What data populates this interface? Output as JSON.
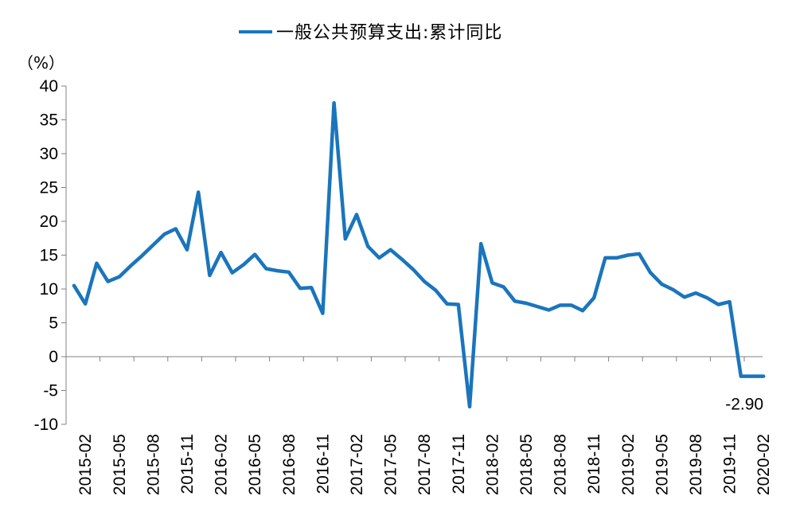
{
  "chart_data": {
    "type": "line",
    "ylabel": "（%）",
    "ylim": [
      -10,
      40
    ],
    "yticks": [
      -10,
      -5,
      0,
      5,
      10,
      15,
      20,
      25,
      30,
      35,
      40
    ],
    "xtick_labels": [
      "2015-02",
      "2015-05",
      "2015-08",
      "2015-11",
      "2016-02",
      "2016-05",
      "2016-08",
      "2016-11",
      "2017-02",
      "2017-05",
      "2017-08",
      "2017-11",
      "2018-02",
      "2018-05",
      "2018-08",
      "2018-11",
      "2019-02",
      "2019-05",
      "2019-08",
      "2019-11",
      "2020-02"
    ],
    "legend_position": "top-center",
    "grid": false,
    "color": "#1A75BC",
    "x": [
      "2015-01",
      "2015-02",
      "2015-03",
      "2015-04",
      "2015-05",
      "2015-06",
      "2015-07",
      "2015-08",
      "2015-09",
      "2015-10",
      "2015-11",
      "2015-12",
      "2016-01",
      "2016-02",
      "2016-03",
      "2016-04",
      "2016-05",
      "2016-06",
      "2016-07",
      "2016-08",
      "2016-09",
      "2016-10",
      "2016-11",
      "2016-12",
      "2017-01",
      "2017-02",
      "2017-03",
      "2017-04",
      "2017-05",
      "2017-06",
      "2017-07",
      "2017-08",
      "2017-09",
      "2017-10",
      "2017-11",
      "2017-12",
      "2018-01",
      "2018-02",
      "2018-03",
      "2018-04",
      "2018-05",
      "2018-06",
      "2018-07",
      "2018-08",
      "2018-09",
      "2018-10",
      "2018-11",
      "2018-12",
      "2019-01",
      "2019-02",
      "2019-03",
      "2019-04",
      "2019-05",
      "2019-06",
      "2019-07",
      "2019-08",
      "2019-09",
      "2019-10",
      "2019-11",
      "2019-12",
      "2020-01",
      "2020-02"
    ],
    "series": [
      {
        "name": "一般公共预算支出:累计同比",
        "values": [
          10.5,
          7.8,
          13.8,
          11.1,
          11.8,
          13.4,
          14.9,
          16.5,
          18.1,
          18.9,
          15.8,
          24.3,
          12.0,
          15.4,
          12.4,
          13.6,
          15.1,
          13.0,
          12.7,
          12.5,
          10.1,
          10.2,
          6.4,
          37.5,
          17.4,
          21.0,
          16.3,
          14.6,
          15.8,
          14.4,
          12.9,
          11.1,
          9.8,
          7.8,
          7.7,
          -7.4,
          16.7,
          10.9,
          10.3,
          8.2,
          7.9,
          7.4,
          6.9,
          7.6,
          7.6,
          6.8,
          8.7,
          14.6,
          14.6,
          15.0,
          15.2,
          12.4,
          10.7,
          9.9,
          8.8,
          9.4,
          8.7,
          7.7,
          8.1,
          -2.9,
          -2.9,
          -2.9
        ],
        "end_label": "-2.90"
      }
    ]
  }
}
